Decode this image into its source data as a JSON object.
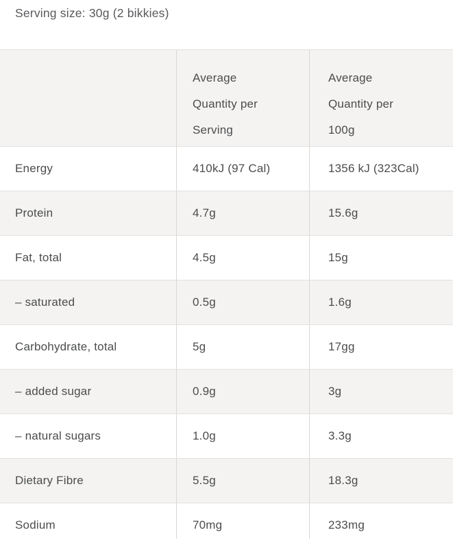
{
  "page": {
    "serving_size_label": "Serving size: 30g (2 bikkies)"
  },
  "table": {
    "col_headers": [
      "Average Quantity per Serving",
      "Average Quantity per 100g"
    ],
    "rows": [
      {
        "label": "Energy",
        "per_serving": "410kJ (97 Cal)",
        "per_100g": "1356 kJ (323Cal)"
      },
      {
        "label": "Protein",
        "per_serving": "4.7g",
        "per_100g": "15.6g"
      },
      {
        "label": "Fat, total",
        "per_serving": "4.5g",
        "per_100g": "15g"
      },
      {
        "label": "– saturated",
        "per_serving": "0.5g",
        "per_100g": "1.6g"
      },
      {
        "label": "Carbohydrate, total",
        "per_serving": "5g",
        "per_100g": "17gg"
      },
      {
        "label": "– added sugar",
        "per_serving": "0.9g",
        "per_100g": "3g"
      },
      {
        "label": "– natural sugars",
        "per_serving": "1.0g",
        "per_100g": "3.3g"
      },
      {
        "label": "Dietary Fibre",
        "per_serving": "5.5g",
        "per_100g": "18.3g"
      },
      {
        "label": "Sodium",
        "per_serving": "70mg",
        "per_100g": "233mg"
      }
    ]
  },
  "colors": {
    "text": "#4b4c4e",
    "text-soft": "#58595c",
    "row-alt": "#f4f3f1",
    "border-h": "#e3e1df",
    "border-v": "#d9d7d5",
    "bg": "#ffffff"
  }
}
